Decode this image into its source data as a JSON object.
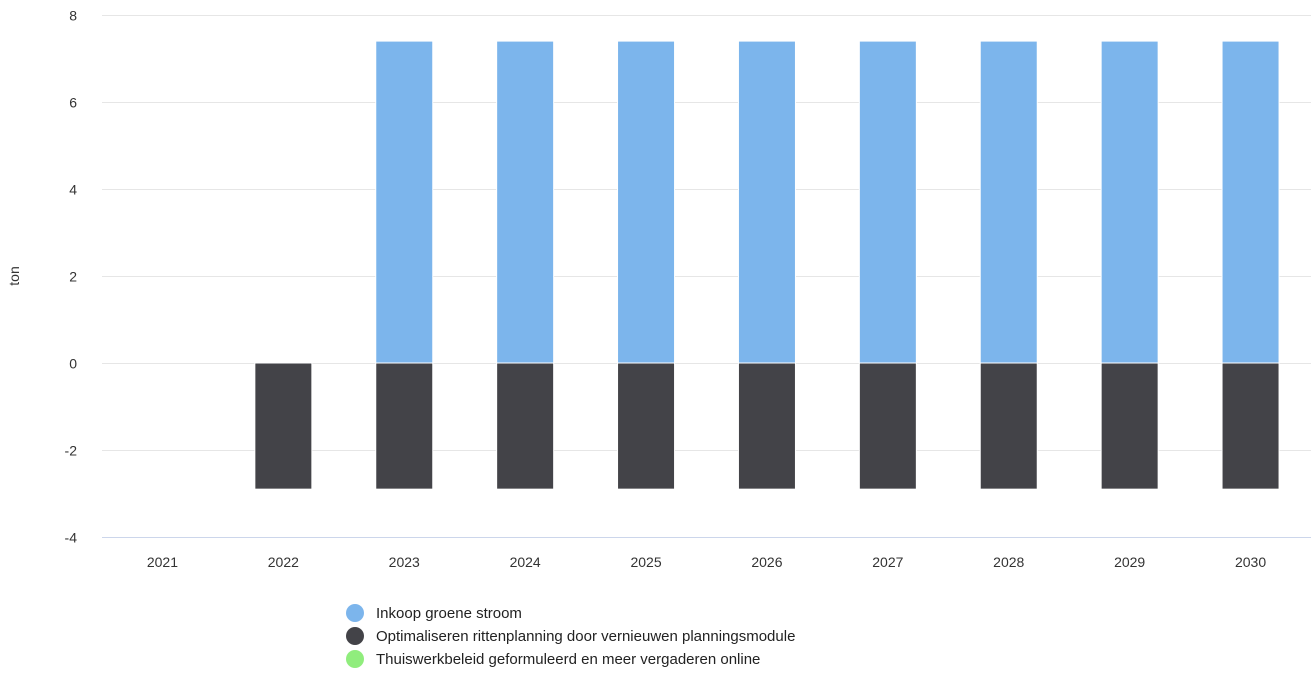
{
  "chart_data": {
    "type": "bar",
    "stacked": true,
    "ylabel": "ton",
    "xlabel": "",
    "title": "",
    "ylim": [
      -4,
      8
    ],
    "yticks": [
      -4,
      -2,
      0,
      2,
      4,
      6,
      8
    ],
    "grid": true,
    "legend_position": "bottom",
    "categories": [
      "2021",
      "2022",
      "2023",
      "2024",
      "2025",
      "2026",
      "2027",
      "2028",
      "2029",
      "2030"
    ],
    "series": [
      {
        "name": "Inkoop groene stroom",
        "color": "#7cb5ec",
        "values": [
          0,
          0,
          7.4,
          7.4,
          7.4,
          7.4,
          7.4,
          7.4,
          7.4,
          7.4
        ]
      },
      {
        "name": "Optimaliseren rittenplanning door vernieuwen planningsmodule",
        "color": "#434348",
        "values": [
          0,
          -2.9,
          -2.9,
          -2.9,
          -2.9,
          -2.9,
          -2.9,
          -2.9,
          -2.9,
          -2.9
        ]
      },
      {
        "name": "Thuiswerkbeleid geformuleerd en meer vergaderen online",
        "color": "#90ed7d",
        "values": [
          0,
          0,
          0,
          0,
          0,
          0,
          0,
          0,
          0,
          0
        ]
      }
    ]
  }
}
